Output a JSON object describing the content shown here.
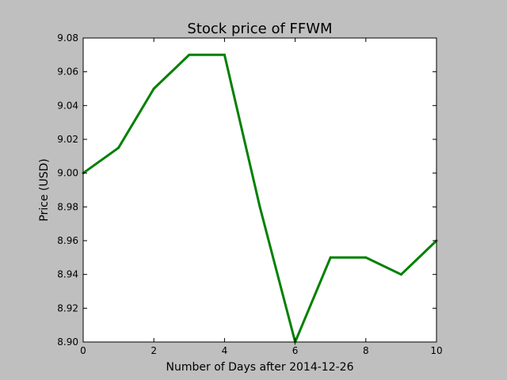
{
  "chart_data": {
    "type": "line",
    "title": "Stock price of FFWM",
    "xlabel": "Number of Days after 2014-12-26",
    "ylabel": "Price (USD)",
    "xlim": [
      0,
      10
    ],
    "ylim": [
      8.9,
      9.08
    ],
    "x_ticks": [
      0,
      2,
      4,
      6,
      8,
      10
    ],
    "x_tick_labels": [
      "0",
      "2",
      "4",
      "6",
      "8",
      "10"
    ],
    "y_ticks": [
      8.9,
      8.92,
      8.94,
      8.96,
      8.98,
      9.0,
      9.02,
      9.04,
      9.06,
      9.08
    ],
    "y_tick_labels": [
      "8.90",
      "8.92",
      "8.94",
      "8.96",
      "8.98",
      "9.00",
      "9.02",
      "9.04",
      "9.06",
      "9.08"
    ],
    "grid": false,
    "legend": "none",
    "series": [
      {
        "color": "#008000",
        "x": [
          0,
          1,
          2,
          3,
          4,
          5,
          6,
          7,
          8,
          9,
          10
        ],
        "values": [
          9.0,
          9.015,
          9.05,
          9.07,
          9.07,
          8.98,
          8.9,
          8.95,
          8.95,
          8.94,
          8.96
        ]
      }
    ]
  }
}
